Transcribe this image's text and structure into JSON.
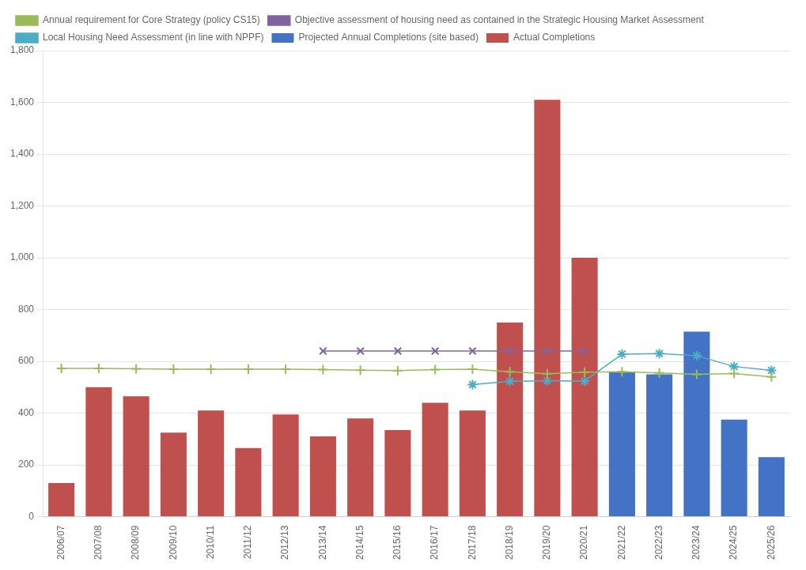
{
  "chart_data": {
    "type": "bar",
    "categories": [
      "2006/07",
      "2007/08",
      "2008/09",
      "2009/10",
      "2010/11",
      "2011/12",
      "2012/13",
      "2013/14",
      "2014/15",
      "2015/16",
      "2016/17",
      "2017/18",
      "2018/19",
      "2019/20",
      "2020/21",
      "2021/22",
      "2022/23",
      "2023/24",
      "2024/25",
      "2025/26"
    ],
    "series": [
      {
        "name": "Projected Annual Completions (site based)",
        "type": "bar",
        "color": "#4472c4",
        "values": [
          null,
          null,
          null,
          null,
          null,
          null,
          null,
          null,
          null,
          null,
          null,
          null,
          null,
          null,
          null,
          560,
          550,
          715,
          375,
          230
        ]
      },
      {
        "name": "Actual Completions",
        "type": "bar",
        "color": "#c0504d",
        "values": [
          130,
          500,
          465,
          325,
          410,
          265,
          395,
          310,
          380,
          335,
          440,
          410,
          750,
          1610,
          1000,
          null,
          null,
          null,
          null,
          null
        ]
      },
      {
        "name": "Annual requirement for Core Strategy (policy CS15)",
        "type": "line",
        "color": "#9bbb59",
        "marker": "plus",
        "values": [
          573,
          573,
          571,
          570,
          570,
          570,
          570,
          568,
          566,
          564,
          568,
          570,
          560,
          552,
          558,
          560,
          555,
          550,
          553,
          540
        ]
      },
      {
        "name": "Objective assessment of housing need as contained in the Strategic Housing Market Assessment",
        "type": "line",
        "color": "#8064a2",
        "marker": "x",
        "values": [
          null,
          null,
          null,
          null,
          null,
          null,
          null,
          640,
          640,
          640,
          640,
          640,
          640,
          640,
          640,
          null,
          null,
          null,
          null,
          null
        ]
      },
      {
        "name": "Local Housing Need Assessment (in line with NPPF)",
        "type": "line",
        "color": "#4bacc6",
        "marker": "star",
        "values": [
          null,
          null,
          null,
          null,
          null,
          null,
          null,
          null,
          null,
          null,
          null,
          510,
          523,
          525,
          524,
          628,
          630,
          622,
          580,
          565
        ]
      }
    ],
    "ylim": [
      0,
      1800
    ],
    "yticks": [
      0,
      200,
      400,
      600,
      800,
      1000,
      1200,
      1400,
      1600,
      1800
    ],
    "grid": true,
    "legend": "upper left"
  }
}
